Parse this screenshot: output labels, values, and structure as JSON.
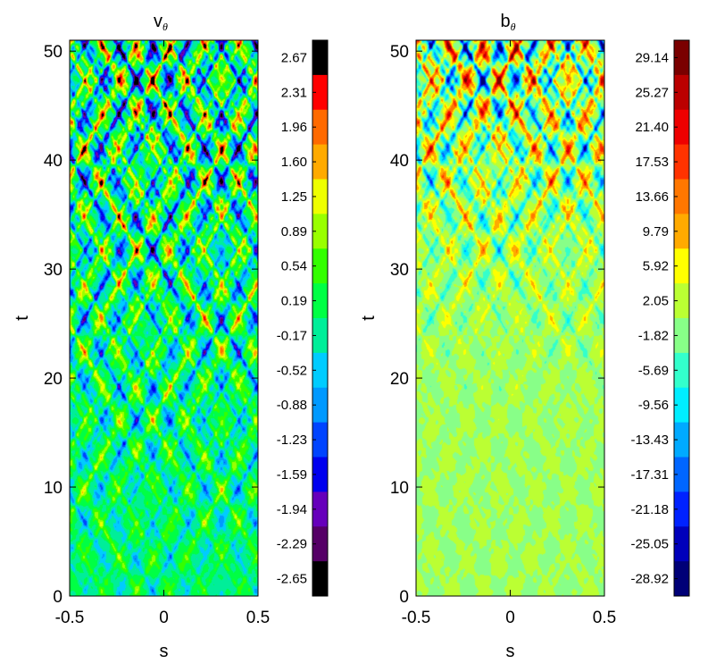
{
  "chart_data": [
    {
      "type": "heatmap",
      "title": "v",
      "title_subscript": "θ",
      "xlabel": "s",
      "ylabel": "t",
      "xlim": [
        -0.5,
        0.5
      ],
      "ylim": [
        0,
        51
      ],
      "x_ticks": [
        -0.5,
        0,
        0.5
      ],
      "x_tick_labels": [
        "-0.5",
        "0",
        "0.5"
      ],
      "y_ticks": [
        0,
        10,
        20,
        30,
        40,
        50
      ],
      "y_tick_labels": [
        "0",
        "10",
        "20",
        "30",
        "40",
        "50"
      ],
      "value_range": [
        -2.65,
        2.67
      ],
      "colorbar_labels": [
        "2.67",
        "2.31",
        "1.96",
        "1.60",
        "1.25",
        "0.89",
        "0.54",
        "0.19",
        "-0.17",
        "-0.52",
        "-0.88",
        "-1.23",
        "-1.59",
        "-1.94",
        "-2.29",
        "-2.65"
      ],
      "colorbar_colors": [
        "#000000",
        "#ff0000",
        "#ff6a00",
        "#ffaa00",
        "#eeff00",
        "#99ff00",
        "#33ff00",
        "#00ff44",
        "#00ee99",
        "#00ccff",
        "#0099ff",
        "#0044ff",
        "#0000ee",
        "#6600bb",
        "#550066",
        "#000000"
      ],
      "pattern": "crossing diagonal wave packets, amplitude growing with t",
      "grid": false,
      "legend": "colorbar-right"
    },
    {
      "type": "heatmap",
      "title": "b",
      "title_subscript": "θ",
      "xlabel": "s",
      "ylabel": "t",
      "xlim": [
        -0.5,
        0.5
      ],
      "ylim": [
        0,
        51
      ],
      "x_ticks": [
        -0.5,
        0,
        0.5
      ],
      "x_tick_labels": [
        "-0.5",
        "0",
        "0.5"
      ],
      "y_ticks": [
        0,
        10,
        20,
        30,
        40,
        50
      ],
      "y_tick_labels": [
        "0",
        "10",
        "20",
        "30",
        "40",
        "50"
      ],
      "value_range": [
        -28.92,
        29.14
      ],
      "colorbar_labels": [
        "29.14",
        "25.27",
        "21.40",
        "17.53",
        "13.66",
        "9.79",
        "5.92",
        "2.05",
        "-1.82",
        "-5.69",
        "-9.56",
        "-13.43",
        "-17.31",
        "-21.18",
        "-25.05",
        "-28.92"
      ],
      "colorbar_colors": [
        "#7a0000",
        "#bb0000",
        "#ee0000",
        "#ff3300",
        "#ff7700",
        "#ffaa00",
        "#ffff00",
        "#bbff33",
        "#88ff88",
        "#33ffcc",
        "#00eeff",
        "#00aaff",
        "#0066ff",
        "#0022ff",
        "#0000bb",
        "#000077"
      ],
      "pattern": "crossing diagonal wave packets, amplitude growing with t",
      "grid": false,
      "legend": "colorbar-right"
    }
  ]
}
